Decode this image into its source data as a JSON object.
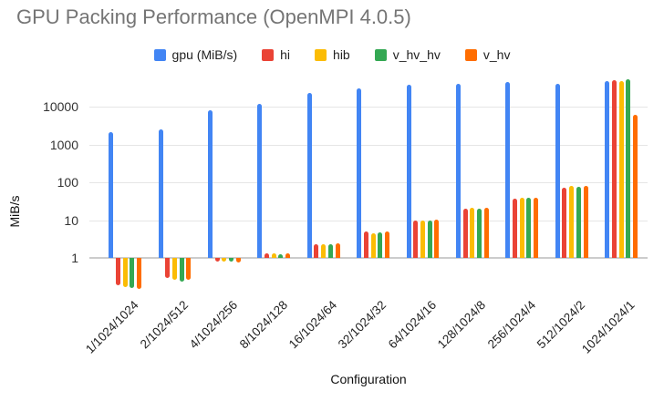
{
  "chart_data": {
    "type": "bar",
    "title": "GPU Packing Performance (OpenMPI 4.0.5)",
    "xlabel": "Configuration",
    "ylabel": "MiB/s",
    "y_scale": "log",
    "y_ticks": [
      1,
      10,
      100,
      1000,
      10000
    ],
    "ylim": [
      0.1,
      60000
    ],
    "grid": true,
    "legend_position": "top",
    "categories": [
      "1/1024/1024",
      "2/1024/512",
      "4/1024/256",
      "8/1024/128",
      "16/1024/64",
      "32/1024/32",
      "64/1024/16",
      "128/1024/8",
      "256/1024/4",
      "512/1024/2",
      "1024/1024/1"
    ],
    "series": [
      {
        "name": "gpu (MiB/s)",
        "color": "#4285F4",
        "values": [
          2100,
          2500,
          8000,
          12000,
          23000,
          30000,
          38000,
          40000,
          44000,
          41000,
          46000
        ]
      },
      {
        "name": "hi",
        "color": "#EA4335",
        "values": [
          0.19,
          0.3,
          0.8,
          1.3,
          2.3,
          4.9,
          10.0,
          20.0,
          36.5,
          72,
          51000
        ]
      },
      {
        "name": "hib",
        "color": "#FBBC04",
        "values": [
          0.17,
          0.27,
          0.78,
          1.3,
          2.25,
          4.5,
          9.7,
          21.5,
          39.5,
          78,
          48000
        ]
      },
      {
        "name": "v_hv_hv",
        "color": "#34A853",
        "values": [
          0.16,
          0.24,
          0.8,
          1.25,
          2.3,
          4.7,
          9.7,
          20.5,
          38.0,
          75,
          53000
        ]
      },
      {
        "name": "v_hv",
        "color": "#FF6D00",
        "values": [
          0.15,
          0.26,
          0.75,
          1.3,
          2.4,
          4.9,
          10.3,
          21.0,
          39.5,
          78,
          6200
        ]
      }
    ]
  }
}
